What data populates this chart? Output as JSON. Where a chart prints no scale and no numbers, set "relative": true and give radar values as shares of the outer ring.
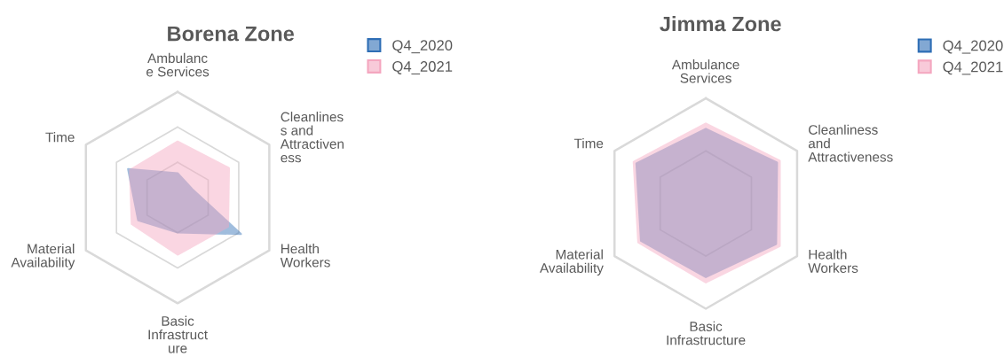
{
  "chart_data": [
    {
      "type": "radar",
      "title": "Borena Zone",
      "relative": true,
      "legend": "top right",
      "categories": [
        "Ambulanc\ne Services",
        "Cleanlines\ns and\nAttractiven\ness",
        "Health\nWorkers",
        "Basic\nInfrastruct\nure",
        "Material\nAvailability",
        "Time"
      ],
      "series": [
        {
          "name": "Q4_2020",
          "color": "#2e6eb5",
          "values": [
            0.23,
            0.16,
            0.69,
            0.33,
            0.43,
            0.54
          ]
        },
        {
          "name": "Q4_2021",
          "color": "#f4a6bf",
          "values": [
            0.53,
            0.56,
            0.55,
            0.54,
            0.5,
            0.52
          ]
        }
      ]
    },
    {
      "type": "radar",
      "title": "Jimma Zone",
      "relative": true,
      "legend": "top right",
      "categories": [
        "Ambulance\nServices",
        "Cleanliness\nand\nAttractiveness",
        "Health\nWorkers",
        "Basic\nInfrastructure",
        "Material\nAvailability",
        "Time"
      ],
      "series": [
        {
          "name": "Q4_2020",
          "color": "#2e6eb5",
          "values": [
            0.71,
            0.78,
            0.77,
            0.7,
            0.71,
            0.76
          ]
        },
        {
          "name": "Q4_2021",
          "color": "#f4a6bf",
          "values": [
            0.76,
            0.81,
            0.81,
            0.75,
            0.74,
            0.79
          ]
        }
      ]
    }
  ]
}
